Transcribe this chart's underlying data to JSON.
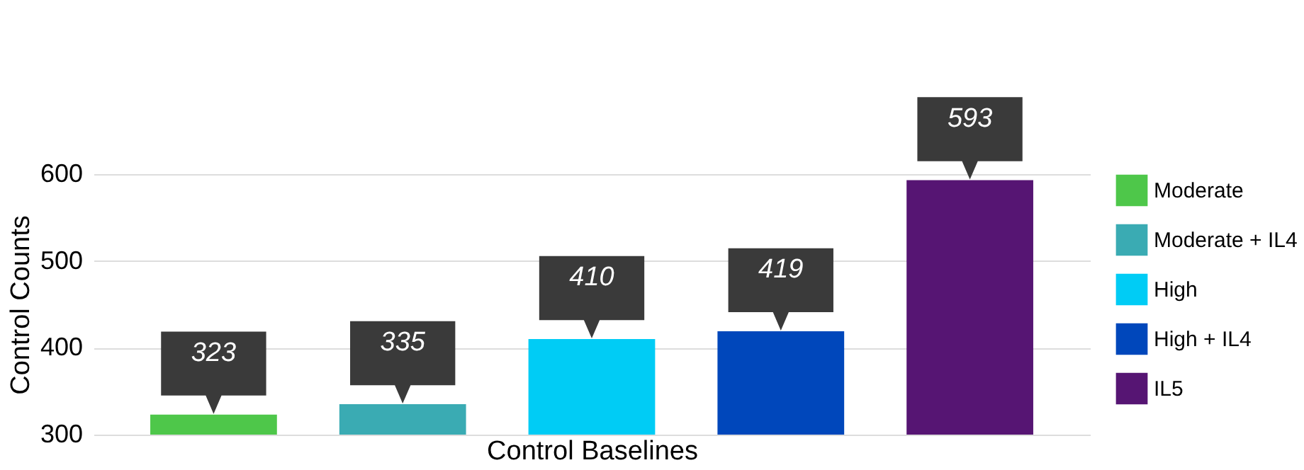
{
  "chart_data": {
    "type": "bar",
    "xlabel": "Control Baselines",
    "ylabel": "Control  Counts",
    "categories": [
      null,
      null,
      null,
      null,
      null
    ],
    "series": [
      {
        "name": "Moderate",
        "color": "#4ec74a",
        "values": [
          323,
          null,
          null,
          null,
          null
        ]
      },
      {
        "name": "Moderate + IL4",
        "color": "#3aabb3",
        "values": [
          null,
          335,
          null,
          null,
          null
        ]
      },
      {
        "name": "High",
        "color": "#00ccf5",
        "values": [
          null,
          null,
          410,
          null,
          null
        ]
      },
      {
        "name": "High + IL4",
        "color": "#0047bb",
        "values": [
          null,
          null,
          null,
          419,
          null
        ]
      },
      {
        "name": "IL5",
        "color": "#561573",
        "values": [
          null,
          null,
          null,
          null,
          593
        ]
      }
    ],
    "ylim": [
      300,
      600
    ],
    "yticks": [
      300,
      400,
      500,
      600
    ],
    "grid": "y",
    "legend": "right",
    "tick_labels": "y",
    "data_labels": true
  }
}
